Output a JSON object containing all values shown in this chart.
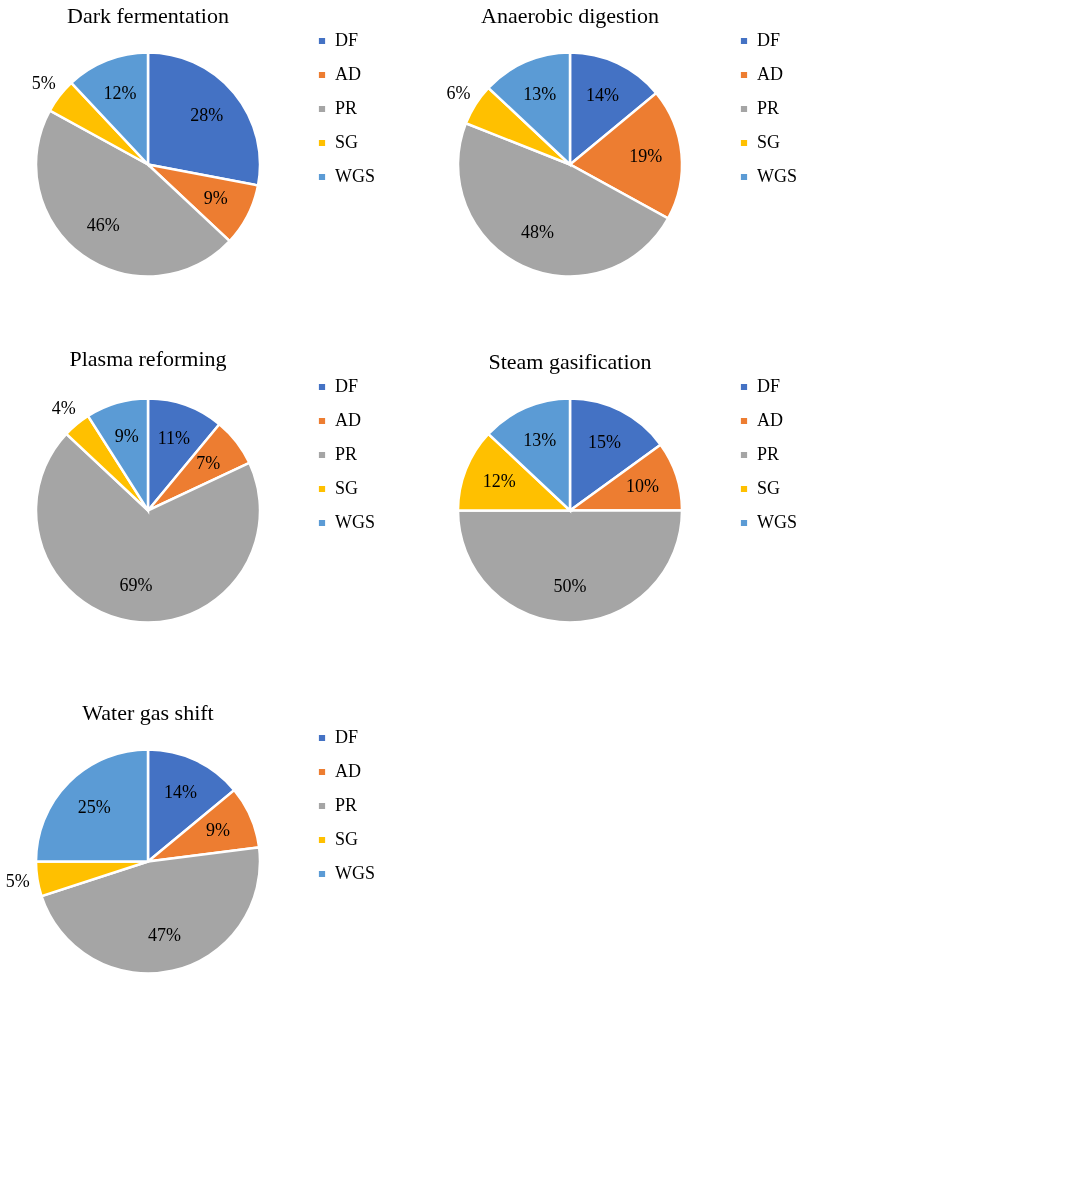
{
  "chart_data": [
    {
      "type": "pie",
      "title": "Dark fermentation",
      "categories": [
        "DF",
        "AD",
        "PR",
        "SG",
        "WGS"
      ],
      "values": [
        28,
        9,
        46,
        5,
        12
      ],
      "value_labels": [
        "28%",
        "9%",
        "46%",
        "5%",
        "12%"
      ],
      "colors": [
        "#4472c4",
        "#ed7d31",
        "#a5a5a5",
        "#ffc000",
        "#5b9bd5"
      ],
      "legend": "right"
    },
    {
      "type": "pie",
      "title": "Anaerobic digestion",
      "categories": [
        "DF",
        "AD",
        "PR",
        "SG",
        "WGS"
      ],
      "values": [
        14,
        19,
        48,
        6,
        13
      ],
      "value_labels": [
        "14%",
        "19%",
        "48%",
        "6%",
        "13%"
      ],
      "colors": [
        "#4472c4",
        "#ed7d31",
        "#a5a5a5",
        "#ffc000",
        "#5b9bd5"
      ],
      "legend": "right"
    },
    {
      "type": "pie",
      "title": "Plasma reforming",
      "categories": [
        "DF",
        "AD",
        "PR",
        "SG",
        "WGS"
      ],
      "values": [
        11,
        7,
        69,
        4,
        9
      ],
      "value_labels": [
        "11%",
        "7%",
        "69%",
        "4%",
        "9%"
      ],
      "colors": [
        "#4472c4",
        "#ed7d31",
        "#a5a5a5",
        "#ffc000",
        "#5b9bd5"
      ],
      "legend": "right"
    },
    {
      "type": "pie",
      "title": "Steam gasification",
      "categories": [
        "DF",
        "AD",
        "PR",
        "SG",
        "WGS"
      ],
      "values": [
        15,
        10,
        50,
        12,
        13
      ],
      "value_labels": [
        "15%",
        "10%",
        "50%",
        "12%",
        "13%"
      ],
      "colors": [
        "#4472c4",
        "#ed7d31",
        "#a5a5a5",
        "#ffc000",
        "#5b9bd5"
      ],
      "legend": "right"
    },
    {
      "type": "pie",
      "title": "Water gas shift",
      "categories": [
        "DF",
        "AD",
        "PR",
        "SG",
        "WGS"
      ],
      "values": [
        14,
        9,
        47,
        5,
        25
      ],
      "value_labels": [
        "14%",
        "9%",
        "47%",
        "5%",
        "25%"
      ],
      "colors": [
        "#4472c4",
        "#ed7d31",
        "#a5a5a5",
        "#ffc000",
        "#5b9bd5"
      ],
      "legend": "right"
    }
  ]
}
